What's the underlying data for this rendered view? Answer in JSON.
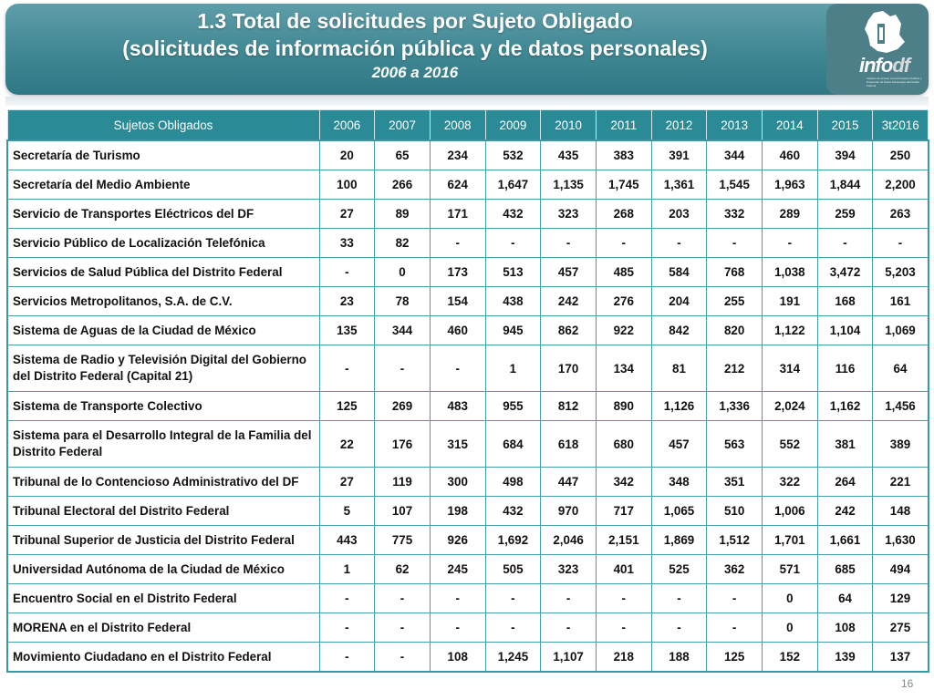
{
  "header": {
    "title_line1": "1.3 Total de solicitudes por Sujeto Obligado",
    "title_line2": "(solicitudes de información pública y de datos personales)",
    "title_line3": "2006 a 2016"
  },
  "logo": {
    "text": "info",
    "mark": "df",
    "caption": "Instituto de Acceso a la Información Pública y Protección de Datos Personales del Distrito Federal"
  },
  "table": {
    "columns": [
      "Sujetos Obligados",
      "2006",
      "2007",
      "2008",
      "2009",
      "2010",
      "2011",
      "2012",
      "2013",
      "2014",
      "2015",
      "3t2016"
    ],
    "rows": [
      {
        "name": "Secretaría de Turismo",
        "values": [
          "20",
          "65",
          "234",
          "532",
          "435",
          "383",
          "391",
          "344",
          "460",
          "394",
          "250"
        ]
      },
      {
        "name": "Secretaría del Medio Ambiente",
        "values": [
          "100",
          "266",
          "624",
          "1,647",
          "1,135",
          "1,745",
          "1,361",
          "1,545",
          "1,963",
          "1,844",
          "2,200"
        ]
      },
      {
        "name": "Servicio de Transportes Eléctricos del DF",
        "values": [
          "27",
          "89",
          "171",
          "432",
          "323",
          "268",
          "203",
          "332",
          "289",
          "259",
          "263"
        ]
      },
      {
        "name": "Servicio Público de Localización Telefónica",
        "values": [
          "33",
          "82",
          "-",
          "-",
          "-",
          "-",
          "-",
          "-",
          "-",
          "-",
          "-"
        ]
      },
      {
        "name": "Servicios de Salud Pública del Distrito Federal",
        "values": [
          "-",
          "0",
          "173",
          "513",
          "457",
          "485",
          "584",
          "768",
          "1,038",
          "3,472",
          "5,203"
        ]
      },
      {
        "name": "Servicios Metropolitanos, S.A. de C.V.",
        "values": [
          "23",
          "78",
          "154",
          "438",
          "242",
          "276",
          "204",
          "255",
          "191",
          "168",
          "161"
        ]
      },
      {
        "name": "Sistema de Aguas de la Ciudad de México",
        "values": [
          "135",
          "344",
          "460",
          "945",
          "862",
          "922",
          "842",
          "820",
          "1,122",
          "1,104",
          "1,069"
        ]
      },
      {
        "name": "Sistema de Radio y Televisión Digital del Gobierno del Distrito Federal (Capital 21)",
        "values": [
          "-",
          "-",
          "-",
          "1",
          "170",
          "134",
          "81",
          "212",
          "314",
          "116",
          "64"
        ]
      },
      {
        "name": "Sistema de Transporte Colectivo",
        "values": [
          "125",
          "269",
          "483",
          "955",
          "812",
          "890",
          "1,126",
          "1,336",
          "2,024",
          "1,162",
          "1,456"
        ]
      },
      {
        "name": "Sistema para el Desarrollo Integral de la Familia del Distrito Federal",
        "values": [
          "22",
          "176",
          "315",
          "684",
          "618",
          "680",
          "457",
          "563",
          "552",
          "381",
          "389"
        ]
      },
      {
        "name": "Tribunal de lo Contencioso Administrativo del DF",
        "values": [
          "27",
          "119",
          "300",
          "498",
          "447",
          "342",
          "348",
          "351",
          "322",
          "264",
          "221"
        ]
      },
      {
        "name": "Tribunal Electoral del Distrito Federal",
        "values": [
          "5",
          "107",
          "198",
          "432",
          "970",
          "717",
          "1,065",
          "510",
          "1,006",
          "242",
          "148"
        ]
      },
      {
        "name": "Tribunal Superior de Justicia del Distrito Federal",
        "values": [
          "443",
          "775",
          "926",
          "1,692",
          "2,046",
          "2,151",
          "1,869",
          "1,512",
          "1,701",
          "1,661",
          "1,630"
        ]
      },
      {
        "name": "Universidad Autónoma de la Ciudad de México",
        "values": [
          "1",
          "62",
          "245",
          "505",
          "323",
          "401",
          "525",
          "362",
          "571",
          "685",
          "494"
        ]
      },
      {
        "name": "Encuentro Social en el Distrito Federal",
        "values": [
          "-",
          "-",
          "-",
          "-",
          "-",
          "-",
          "-",
          "-",
          "0",
          "64",
          "129"
        ]
      },
      {
        "name": "MORENA en el Distrito Federal",
        "values": [
          "-",
          "-",
          "-",
          "-",
          "-",
          "-",
          "-",
          "-",
          "0",
          "108",
          "275"
        ]
      },
      {
        "name": "Movimiento Ciudadano en el Distrito Federal",
        "values": [
          "-",
          "-",
          "108",
          "1,245",
          "1,107",
          "218",
          "188",
          "125",
          "152",
          "139",
          "137"
        ]
      }
    ]
  },
  "footer": {
    "page_number": "16"
  }
}
